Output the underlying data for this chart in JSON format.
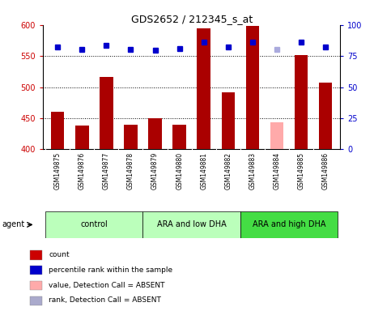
{
  "title": "GDS2652 / 212345_s_at",
  "samples": [
    "GSM149875",
    "GSM149876",
    "GSM149877",
    "GSM149878",
    "GSM149879",
    "GSM149880",
    "GSM149881",
    "GSM149882",
    "GSM149883",
    "GSM149884",
    "GSM149885",
    "GSM149886"
  ],
  "bar_values": [
    460,
    438,
    516,
    440,
    450,
    440,
    595,
    492,
    598,
    443,
    551,
    507
  ],
  "bar_colors": [
    "#aa0000",
    "#aa0000",
    "#aa0000",
    "#aa0000",
    "#aa0000",
    "#aa0000",
    "#aa0000",
    "#aa0000",
    "#aa0000",
    "#ffaaaa",
    "#aa0000",
    "#aa0000"
  ],
  "percentile_values": [
    564,
    560,
    567,
    560,
    559,
    562,
    572,
    564,
    572,
    560,
    572,
    564
  ],
  "percentile_colors": [
    "#0000cc",
    "#0000cc",
    "#0000cc",
    "#0000cc",
    "#0000cc",
    "#0000cc",
    "#0000cc",
    "#0000cc",
    "#0000cc",
    "#aaaadd",
    "#0000cc",
    "#0000cc"
  ],
  "ylim_left": [
    400,
    600
  ],
  "ylim_right": [
    0,
    100
  ],
  "yticks_left": [
    400,
    450,
    500,
    550,
    600
  ],
  "yticks_right": [
    0,
    25,
    50,
    75,
    100
  ],
  "groups": [
    {
      "label": "control",
      "start": 0,
      "end": 3,
      "color": "#bbffbb"
    },
    {
      "label": "ARA and low DHA",
      "start": 4,
      "end": 7,
      "color": "#bbffbb"
    },
    {
      "label": "ARA and high DHA",
      "start": 8,
      "end": 11,
      "color": "#44dd44"
    }
  ],
  "legend_items": [
    {
      "color": "#cc0000",
      "label": "count"
    },
    {
      "color": "#0000cc",
      "label": "percentile rank within the sample"
    },
    {
      "color": "#ffaaaa",
      "label": "value, Detection Call = ABSENT"
    },
    {
      "color": "#aaaacc",
      "label": "rank, Detection Call = ABSENT"
    }
  ],
  "background_color": "#ffffff",
  "tick_label_color_left": "#cc0000",
  "tick_label_color_right": "#0000cc",
  "fig_width": 4.83,
  "fig_height": 3.84,
  "dpi": 100
}
